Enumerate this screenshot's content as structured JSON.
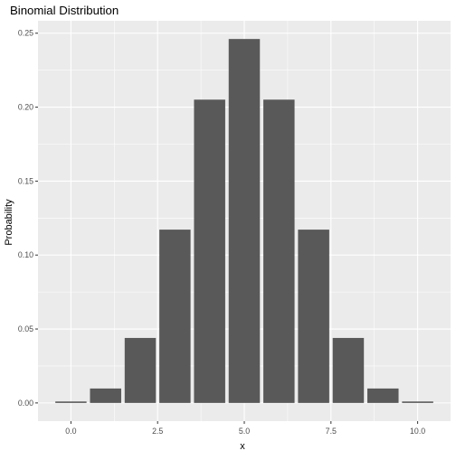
{
  "chart_data": {
    "type": "bar",
    "title": "Binomial Distribution",
    "xlabel": "x",
    "ylabel": "Probability",
    "x": [
      0,
      1,
      2,
      3,
      4,
      5,
      6,
      7,
      8,
      9,
      10
    ],
    "values": [
      0.00098,
      0.00977,
      0.04395,
      0.11719,
      0.20508,
      0.24609,
      0.20508,
      0.11719,
      0.04395,
      0.00977,
      0.00098
    ],
    "xlim": [
      -0.95,
      10.95
    ],
    "ylim": [
      -0.0123,
      0.2584
    ],
    "xticks": [
      0.0,
      2.5,
      5.0,
      7.5,
      10.0
    ],
    "xtick_labels": [
      "0.0",
      "2.5",
      "5.0",
      "7.5",
      "10.0"
    ],
    "yticks": [
      0.0,
      0.05,
      0.1,
      0.15,
      0.2,
      0.25
    ],
    "ytick_labels": [
      "0.00",
      "0.05",
      "0.10",
      "0.15",
      "0.20",
      "0.25"
    ],
    "bar_width": 0.9,
    "grid": true,
    "colors": {
      "panel_background": "#EBEBEB",
      "grid_major": "#FFFFFF",
      "bar_fill": "#595959",
      "axis_text": "#4D4D4D",
      "title_text": "#000000"
    }
  }
}
